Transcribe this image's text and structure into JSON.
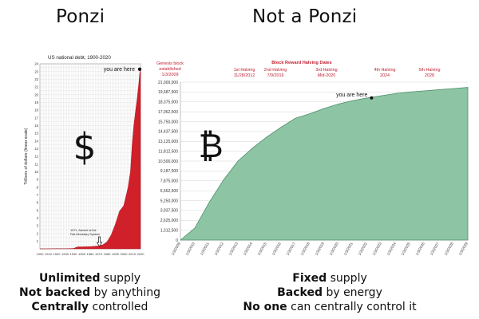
{
  "titles": {
    "left": "Ponzi",
    "right": "Not a Ponzi"
  },
  "captions": {
    "left": [
      {
        "strong": "Unlimited",
        "rest": " supply"
      },
      {
        "strong": "Not backed",
        "rest": " by anything"
      },
      {
        "strong": "Centrally",
        "rest": " controlled"
      }
    ],
    "right": [
      {
        "strong": "Fixed",
        "rest": " supply"
      },
      {
        "strong": "Backed",
        "rest": " by energy"
      },
      {
        "strong": "No one",
        "rest": " can centrally control it"
      }
    ]
  },
  "colors": {
    "debt_fill": "#d0202a",
    "btc_fill": "#8cc4a4",
    "btc_line": "#4f8f6a",
    "annotation_red": "#c02030"
  },
  "chart_data": [
    {
      "type": "area",
      "title": "US national debt, 1900-2020",
      "ylabel": "Trillions of dollars (linear scale)",
      "symbol": "$",
      "xlim": [
        1900,
        2020
      ],
      "ylim": [
        0,
        24
      ],
      "x_ticks": [
        1900,
        1910,
        1920,
        1930,
        1940,
        1950,
        1960,
        1970,
        1980,
        1990,
        2000,
        2010,
        2020
      ],
      "y_ticks": [
        1,
        2,
        3,
        4,
        5,
        6,
        7,
        8,
        9,
        10,
        11,
        12,
        13,
        14,
        15,
        16,
        17,
        18,
        19,
        20,
        21,
        22,
        23,
        24
      ],
      "x": [
        1900,
        1910,
        1920,
        1930,
        1940,
        1945,
        1950,
        1960,
        1970,
        1975,
        1980,
        1985,
        1990,
        1995,
        2000,
        2005,
        2008,
        2010,
        2012,
        2014,
        2016,
        2018,
        2019,
        2020
      ],
      "values": [
        0.0,
        0.0,
        0.03,
        0.02,
        0.05,
        0.26,
        0.26,
        0.29,
        0.37,
        0.53,
        0.9,
        1.8,
        3.2,
        4.9,
        5.6,
        7.9,
        10.0,
        13.5,
        16.0,
        17.8,
        19.5,
        21.5,
        22.7,
        23.3
      ],
      "annotations": [
        {
          "text": "you are here",
          "x": 2020,
          "y": 23.3
        },
        {
          "text": "1971: Advent of the",
          "text2": "Fiat Monetary System",
          "x": 1971,
          "y": 0.4
        }
      ]
    },
    {
      "type": "area",
      "title": "Block Reward Halving Dates",
      "symbol": "₿",
      "ylim": [
        0,
        21000000
      ],
      "y_ticks": [
        "1,312,500",
        "2,625,000",
        "3,937,500",
        "5,250,000",
        "6,562,500",
        "7,875,000",
        "9,187,500",
        "10,500,000",
        "11,812,500",
        "13,125,000",
        "14,437,500",
        "15,750,000",
        "17,062,500",
        "18,375,000",
        "19,687,500",
        "21,000,000"
      ],
      "x_ticks": [
        "1/3/2009",
        "1/3/2010",
        "1/3/2011",
        "1/3/2012",
        "1/3/2013",
        "1/3/2014",
        "1/3/2015",
        "1/3/2016",
        "1/3/2017",
        "1/3/2018",
        "1/3/2019",
        "1/3/2020",
        "1/3/2021",
        "1/3/2022",
        "1/3/2023",
        "1/3/2024",
        "1/3/2025",
        "1/3/2026",
        "1/3/2027",
        "1/3/2028",
        "1/3/2029"
      ],
      "x": [
        2009,
        2010,
        2011,
        2012,
        2013,
        2014,
        2015,
        2016,
        2017,
        2018,
        2019,
        2020,
        2021,
        2022,
        2023,
        2024,
        2025,
        2026,
        2027,
        2028,
        2029
      ],
      "values": [
        50,
        1600000,
        5000000,
        8000000,
        10500000,
        12200000,
        13700000,
        15000000,
        16200000,
        16800000,
        17500000,
        18100000,
        18550000,
        18900000,
        19200000,
        19500000,
        19700000,
        19850000,
        20000000,
        20150000,
        20300000
      ],
      "halvings": [
        {
          "label": "Genesis block",
          "label2": "established",
          "date": "1/3/2009",
          "x": 2009
        },
        {
          "label": "1st Halving",
          "date": "11/28/2012",
          "x": 2012.9
        },
        {
          "label": "2nd Halving",
          "date": "7/9/2016",
          "x": 2016.5
        },
        {
          "label": "3rd Halving",
          "date": "Mid-2020",
          "x": 2020.5
        },
        {
          "label": "4th Halving",
          "date": "2024",
          "x": 2024.3
        },
        {
          "label": "5th Halving",
          "date": "2028",
          "x": 2028
        }
      ],
      "annotations": [
        {
          "text": "you are here",
          "x": 2022.3,
          "y": 18900000
        }
      ]
    }
  ]
}
